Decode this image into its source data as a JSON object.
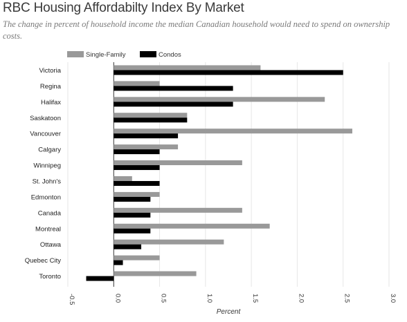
{
  "title": "RBC Housing Affordabilty Index By Market",
  "subtitle": "The change in percent of household income the median Canadian household would need to spend on ownership costs.",
  "colors": {
    "single_family": "#999999",
    "condos": "#000000",
    "grid": "#e6e6e6",
    "axis": "#333333"
  },
  "chart_data": {
    "type": "bar",
    "orientation": "horizontal",
    "categories": [
      "Victoria",
      "Regina",
      "Halifax",
      "Saskatoon",
      "Vancouver",
      "Calgary",
      "Winnipeg",
      "St. John's",
      "Edmonton",
      "Canada",
      "Montreal",
      "Ottawa",
      "Quebec City",
      "Toronto"
    ],
    "series": [
      {
        "name": "Single-Family",
        "values": [
          1.6,
          0.5,
          2.3,
          0.8,
          2.6,
          0.7,
          1.4,
          0.2,
          0.5,
          1.4,
          1.7,
          1.2,
          0.5,
          0.9
        ]
      },
      {
        "name": "Condos",
        "values": [
          2.5,
          1.3,
          1.3,
          0.8,
          0.7,
          0.5,
          0.5,
          0.5,
          0.4,
          0.4,
          0.4,
          0.3,
          0.1,
          -0.3
        ]
      }
    ],
    "xlabel": "Percent",
    "xlim": [
      -0.5,
      3.0
    ],
    "xticks": [
      "-0.5",
      "0.0",
      "0.5",
      "1.0",
      "1.5",
      "2.0",
      "2.5",
      "3.0"
    ],
    "legend_position": "top-left",
    "grid": true
  }
}
